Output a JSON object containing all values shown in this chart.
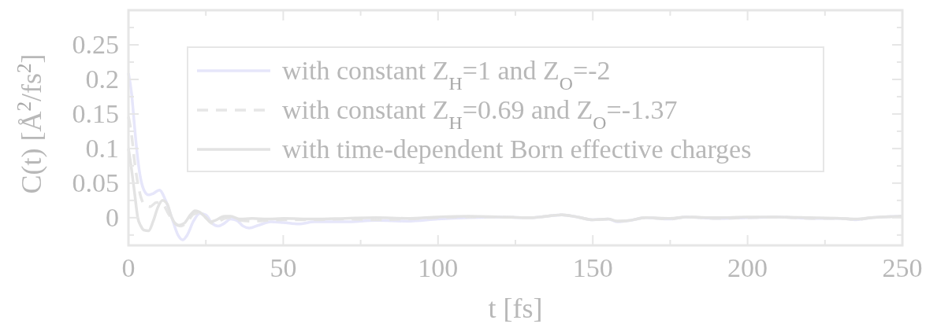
{
  "chart_data": {
    "type": "line",
    "xlabel": "t [fs]",
    "ylabel": "C(t) [Å$^{2}$/fs$^{2}$]",
    "xlim": [
      0,
      250
    ],
    "xticks": [
      0,
      {
        "value": 25,
        "label": null
      },
      50,
      {
        "value": 75,
        "label": null
      },
      100,
      {
        "value": 125,
        "label": null
      },
      150,
      {
        "value": 175,
        "label": null
      },
      200,
      {
        "value": 225,
        "label": null
      },
      250
    ],
    "ylim": [
      -0.04,
      0.3
    ],
    "yticks": [
      {
        "value": -0.025,
        "label": null
      },
      0,
      {
        "value": 0.025,
        "label": null
      },
      0.05,
      {
        "value": 0.075,
        "label": null
      },
      0.1,
      {
        "value": 0.125,
        "label": null
      },
      0.15,
      {
        "value": 0.175,
        "label": null
      },
      0.2,
      {
        "value": 0.225,
        "label": null
      },
      0.25,
      {
        "value": 0.275,
        "label": null
      }
    ],
    "legend": "top",
    "grid": false,
    "series": [
      {
        "name": "with constant Z$_{H}$=1 and Z$_{O}$=-2",
        "color": "#e6e6fa",
        "line_style": "solid",
        "x": [
          0,
          1,
          2,
          3,
          4,
          5,
          6.5,
          8,
          10,
          12,
          14,
          16,
          17.5,
          19,
          21,
          23,
          25,
          27,
          29,
          31,
          33,
          35,
          37,
          39,
          42,
          46,
          50,
          55,
          60,
          70,
          80,
          90,
          100,
          110,
          120,
          130,
          140,
          145,
          150,
          155,
          158,
          162,
          167,
          175,
          180,
          190,
          200,
          210,
          220,
          230,
          235,
          240,
          250
        ],
        "values": [
          0.209,
          0.18,
          0.13,
          0.085,
          0.055,
          0.04,
          0.033,
          0.035,
          0.04,
          0.025,
          0.0,
          -0.025,
          -0.032,
          -0.025,
          -0.005,
          0.006,
          0.004,
          -0.008,
          -0.012,
          -0.008,
          -0.002,
          -0.004,
          -0.012,
          -0.015,
          -0.011,
          -0.006,
          -0.007,
          -0.009,
          -0.006,
          -0.006,
          -0.004,
          -0.005,
          -0.002,
          0.0,
          0.001,
          0.0,
          0.004,
          0.001,
          -0.003,
          -0.002,
          -0.006,
          -0.004,
          0.0,
          -0.002,
          0.001,
          -0.001,
          0.0,
          0.001,
          -0.001,
          -0.001,
          -0.003,
          0.0,
          0.002
        ]
      },
      {
        "name": "with constant Z$_{H}$=0.69 and Z$_{O}$=-1.37",
        "color": "#e6e6e6",
        "line_style": "dashed",
        "x": [
          0,
          1,
          2,
          3,
          4,
          5,
          7,
          9,
          11,
          13,
          15,
          17,
          19,
          21,
          23,
          25,
          27,
          29,
          31,
          33,
          36,
          40,
          45,
          50,
          60,
          70,
          80,
          90,
          100,
          110,
          120,
          130,
          140,
          145,
          150,
          155,
          158,
          162,
          167,
          175,
          180,
          190,
          200,
          210,
          220,
          230,
          235,
          240,
          250
        ],
        "values": [
          0.146,
          0.12,
          0.08,
          0.05,
          0.03,
          0.02,
          0.016,
          0.022,
          0.02,
          0.005,
          -0.008,
          -0.012,
          -0.006,
          0.005,
          0.007,
          0.0,
          -0.008,
          -0.006,
          -0.001,
          0.0,
          -0.004,
          -0.005,
          -0.004,
          -0.003,
          -0.003,
          -0.002,
          -0.003,
          -0.002,
          0.0,
          0.001,
          0.001,
          0.0,
          0.004,
          0.001,
          -0.003,
          -0.002,
          -0.005,
          -0.004,
          0.0,
          -0.002,
          0.001,
          -0.001,
          0.0,
          0.001,
          -0.001,
          -0.001,
          -0.003,
          0.0,
          0.002
        ]
      },
      {
        "name": "with time-dependent Born effective charges",
        "color": "#e3e3e3",
        "line_style": "solid",
        "x": [
          0,
          1,
          2,
          3,
          4,
          5,
          6.5,
          8,
          9.5,
          11,
          12.5,
          14,
          16,
          18,
          20,
          21.5,
          23,
          25,
          26.5,
          28,
          31,
          33,
          36,
          40,
          45,
          50,
          60,
          70,
          80,
          90,
          100,
          110,
          120,
          130,
          140,
          145,
          150,
          155,
          158,
          162,
          167,
          175,
          180,
          190,
          200,
          210,
          220,
          230,
          235,
          240,
          250
        ],
        "values": [
          0.1,
          0.07,
          0.035,
          0.0,
          -0.012,
          -0.018,
          -0.019,
          -0.005,
          0.015,
          0.025,
          0.02,
          0.0,
          -0.011,
          -0.008,
          0.004,
          0.01,
          0.008,
          0.0,
          -0.006,
          -0.004,
          0.002,
          0.002,
          -0.002,
          -0.001,
          -0.002,
          -0.001,
          -0.002,
          -0.001,
          0.0,
          -0.001,
          0.001,
          0.002,
          0.001,
          0.0,
          0.004,
          0.001,
          -0.003,
          -0.002,
          -0.005,
          -0.004,
          0.0,
          -0.001,
          0.001,
          0.0,
          0.001,
          0.001,
          0.0,
          -0.001,
          -0.002,
          0.0,
          0.002
        ]
      }
    ]
  }
}
